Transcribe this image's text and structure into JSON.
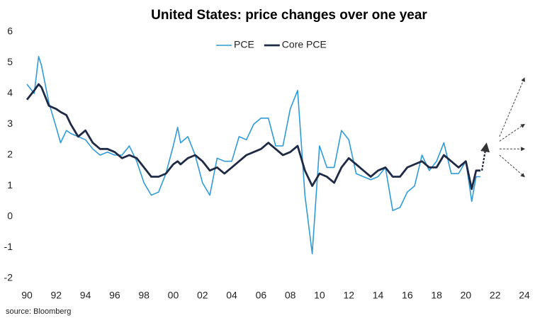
{
  "chart_data": {
    "type": "line",
    "title": "United States: price changes over one year",
    "source": "source: Bloomberg",
    "x": [
      1990.0,
      1990.5,
      1990.8,
      1991.0,
      1991.5,
      1992.0,
      1992.3,
      1992.7,
      1993.0,
      1993.5,
      1994.0,
      1994.5,
      1995.0,
      1995.5,
      1996.0,
      1996.5,
      1997.0,
      1997.5,
      1998.0,
      1998.5,
      1999.0,
      1999.5,
      2000.0,
      2000.3,
      2000.5,
      2001.0,
      2001.5,
      2002.0,
      2002.5,
      2003.0,
      2003.5,
      2004.0,
      2004.5,
      2005.0,
      2005.5,
      2006.0,
      2006.5,
      2007.0,
      2007.5,
      2008.0,
      2008.5,
      2009.0,
      2009.5,
      2010.0,
      2010.5,
      2011.0,
      2011.5,
      2012.0,
      2012.5,
      2013.0,
      2013.5,
      2014.0,
      2014.5,
      2015.0,
      2015.5,
      2016.0,
      2016.5,
      2017.0,
      2017.5,
      2018.0,
      2018.5,
      2019.0,
      2019.5,
      2020.0,
      2020.4,
      2020.7,
      2021.0
    ],
    "series": [
      {
        "name": "PCE",
        "color": "#2e9bd6",
        "width": 1.6,
        "values": [
          4.3,
          4.0,
          5.2,
          4.9,
          3.7,
          2.9,
          2.4,
          2.8,
          2.7,
          2.6,
          2.5,
          2.2,
          2.0,
          2.1,
          2.0,
          2.0,
          2.3,
          1.8,
          1.1,
          0.7,
          0.8,
          1.4,
          2.3,
          2.9,
          2.4,
          2.6,
          2.0,
          1.1,
          0.7,
          1.9,
          1.8,
          1.8,
          2.6,
          2.5,
          3.0,
          3.2,
          3.2,
          2.3,
          2.3,
          3.5,
          4.1,
          0.7,
          -1.2,
          2.3,
          1.6,
          1.6,
          2.8,
          2.5,
          1.4,
          1.3,
          1.2,
          1.3,
          1.6,
          0.2,
          0.3,
          0.8,
          1.0,
          2.0,
          1.5,
          1.8,
          2.4,
          1.4,
          1.4,
          1.8,
          0.5,
          1.3,
          1.3
        ]
      },
      {
        "name": "Core PCE",
        "color": "#1f2a44",
        "width": 2.8,
        "values": [
          3.8,
          4.1,
          4.3,
          4.2,
          3.6,
          3.5,
          3.4,
          3.3,
          3.0,
          2.6,
          2.8,
          2.4,
          2.2,
          2.2,
          2.1,
          1.9,
          2.0,
          1.9,
          1.6,
          1.3,
          1.3,
          1.4,
          1.7,
          1.8,
          1.7,
          1.9,
          2.0,
          1.8,
          1.5,
          1.6,
          1.4,
          1.6,
          1.8,
          2.0,
          2.1,
          2.2,
          2.4,
          2.2,
          2.0,
          2.1,
          2.3,
          1.5,
          1.0,
          1.4,
          1.3,
          1.1,
          1.6,
          1.9,
          1.7,
          1.5,
          1.3,
          1.5,
          1.6,
          1.3,
          1.3,
          1.6,
          1.7,
          1.8,
          1.6,
          1.6,
          2.0,
          1.8,
          1.6,
          1.8,
          0.9,
          1.5,
          1.5
        ]
      }
    ],
    "projections": [
      {
        "color": "#1f2a44",
        "width": 2.2,
        "arrow": true,
        "x": [
          2021.1,
          2021.4
        ],
        "y": [
          1.5,
          2.35
        ]
      },
      {
        "color": "#444",
        "width": 1,
        "arrow": true,
        "x": [
          2022.3,
          2024.0
        ],
        "y": [
          2.6,
          4.5
        ]
      },
      {
        "color": "#444",
        "width": 1,
        "arrow": true,
        "x": [
          2022.3,
          2024.0
        ],
        "y": [
          2.45,
          3.0
        ]
      },
      {
        "color": "#444",
        "width": 1,
        "arrow": true,
        "x": [
          2022.3,
          2024.0
        ],
        "y": [
          2.2,
          2.2
        ]
      },
      {
        "color": "#444",
        "width": 1,
        "arrow": true,
        "x": [
          2022.3,
          2024.0
        ],
        "y": [
          2.0,
          1.3
        ]
      }
    ],
    "xlim": [
      1990,
      2024
    ],
    "ylim": [
      -2,
      6
    ],
    "xticks": [
      {
        "value": 1990,
        "label": "90"
      },
      {
        "value": 1992,
        "label": "92"
      },
      {
        "value": 1994,
        "label": "94"
      },
      {
        "value": 1996,
        "label": "96"
      },
      {
        "value": 1998,
        "label": "98"
      },
      {
        "value": 2000,
        "label": "00"
      },
      {
        "value": 2002,
        "label": "02"
      },
      {
        "value": 2004,
        "label": "04"
      },
      {
        "value": 2006,
        "label": "06"
      },
      {
        "value": 2008,
        "label": "08"
      },
      {
        "value": 2010,
        "label": "10"
      },
      {
        "value": 2012,
        "label": "12"
      },
      {
        "value": 2014,
        "label": "14"
      },
      {
        "value": 2016,
        "label": "16"
      },
      {
        "value": 2018,
        "label": "18"
      },
      {
        "value": 2020,
        "label": "20"
      },
      {
        "value": 2022,
        "label": "22"
      },
      {
        "value": 2024,
        "label": "24"
      }
    ],
    "yticks": [
      -2,
      -1,
      0,
      1,
      2,
      3,
      4,
      5,
      6
    ],
    "grid": false,
    "legend": "top"
  }
}
